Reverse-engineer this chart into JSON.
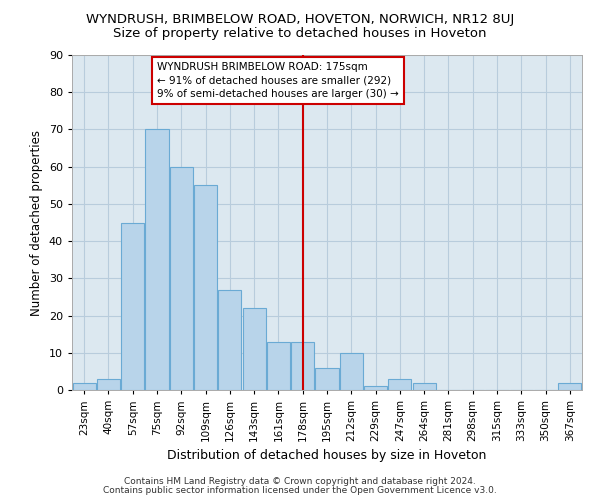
{
  "title": "WYNDRUSH, BRIMBELOW ROAD, HOVETON, NORWICH, NR12 8UJ",
  "subtitle": "Size of property relative to detached houses in Hoveton",
  "xlabel": "Distribution of detached houses by size in Hoveton",
  "ylabel": "Number of detached properties",
  "bar_labels": [
    "23sqm",
    "40sqm",
    "57sqm",
    "75sqm",
    "92sqm",
    "109sqm",
    "126sqm",
    "143sqm",
    "161sqm",
    "178sqm",
    "195sqm",
    "212sqm",
    "229sqm",
    "247sqm",
    "264sqm",
    "281sqm",
    "298sqm",
    "315sqm",
    "333sqm",
    "350sqm",
    "367sqm"
  ],
  "bar_values": [
    2,
    3,
    45,
    70,
    60,
    55,
    27,
    22,
    13,
    13,
    6,
    10,
    1,
    3,
    2,
    0,
    0,
    0,
    0,
    0,
    2
  ],
  "bar_color": "#b8d4ea",
  "bar_edge_color": "#6aaad4",
  "highlight_bar_idx": 9,
  "highlight_color": "#cc0000",
  "annotation_text": "WYNDRUSH BRIMBELOW ROAD: 175sqm\n← 91% of detached houses are smaller (292)\n9% of semi-detached houses are larger (30) →",
  "annotation_box_color": "#cc0000",
  "footer1": "Contains HM Land Registry data © Crown copyright and database right 2024.",
  "footer2": "Contains public sector information licensed under the Open Government Licence v3.0.",
  "ylim": [
    0,
    90
  ],
  "bg_color": "#ffffff",
  "plot_bg_color": "#dce8f0",
  "grid_color": "#b8ccdc",
  "title_fontsize": 9.5,
  "subtitle_fontsize": 9.5,
  "xlabel_fontsize": 9,
  "ylabel_fontsize": 8.5,
  "tick_fontsize": 7.5,
  "footer_fontsize": 6.5
}
